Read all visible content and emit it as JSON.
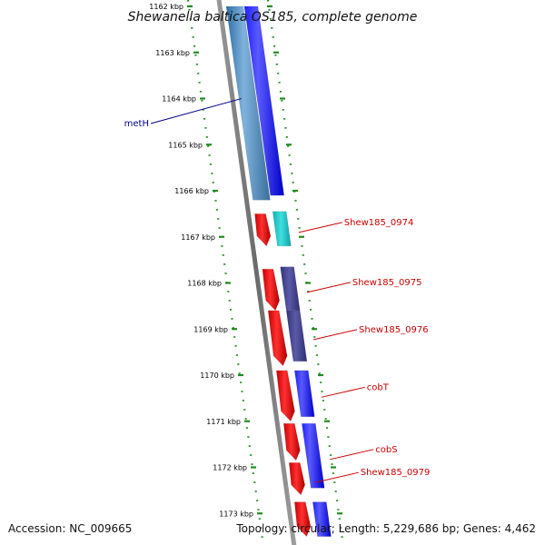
{
  "title": "Shewanella baltica OS185, complete genome",
  "accession": "Accession: NC_009665",
  "topology": "Topology: circular; Length: 5,229,686 bp; Genes: 4,462",
  "colors": {
    "forward_gene": "#0000ee",
    "reverse_gene": "#ee0000",
    "metH": "#4682b4",
    "cyan_gene": "#18c8c8",
    "purple_gene": "#44448c",
    "backbone": "#888888",
    "tick": "#228b22",
    "label_blue": "#00008b",
    "label_red": "#cc0000"
  },
  "ruler": {
    "unit": "kbp",
    "ticks": [
      {
        "kbp": 1162,
        "label": "1162 kbp"
      },
      {
        "kbp": 1163,
        "label": "1163 kbp"
      },
      {
        "kbp": 1164,
        "label": "1164 kbp"
      },
      {
        "kbp": 1165,
        "label": "1165 kbp"
      },
      {
        "kbp": 1166,
        "label": "1166 kbp"
      },
      {
        "kbp": 1167,
        "label": "1167 kbp"
      },
      {
        "kbp": 1168,
        "label": "1168 kbp"
      },
      {
        "kbp": 1169,
        "label": "1169 kbp"
      },
      {
        "kbp": 1170,
        "label": "1170 kbp"
      },
      {
        "kbp": 1171,
        "label": "1171 kbp"
      },
      {
        "kbp": 1172,
        "label": "1172 kbp"
      },
      {
        "kbp": 1173,
        "label": "1173 kbp"
      }
    ]
  },
  "genes": [
    {
      "name": "metH",
      "strand": "forward",
      "color": "metH",
      "start": 1162.0,
      "end": 1166.2
    },
    {
      "name": "",
      "strand": "forward",
      "color": "forward_gene",
      "start": 1162.0,
      "end": 1166.1
    },
    {
      "name": "",
      "strand": "reverse",
      "color": "reverse_gene",
      "start": 1166.5,
      "end": 1167.2
    },
    {
      "name": "Shew185_0974",
      "strand": "forward",
      "color": "cyan_gene",
      "start": 1166.45,
      "end": 1167.2
    },
    {
      "name": "",
      "strand": "reverse",
      "color": "reverse_gene",
      "start": 1167.7,
      "end": 1168.6
    },
    {
      "name": "Shew185_0975",
      "strand": "forward",
      "color": "purple_gene",
      "start": 1167.65,
      "end": 1168.6
    },
    {
      "name": "",
      "strand": "reverse",
      "color": "reverse_gene",
      "start": 1168.6,
      "end": 1169.8
    },
    {
      "name": "Shew185_0976",
      "strand": "forward",
      "color": "purple_gene",
      "start": 1168.6,
      "end": 1169.7
    },
    {
      "name": "",
      "strand": "reverse",
      "color": "reverse_gene",
      "start": 1169.9,
      "end": 1171.0
    },
    {
      "name": "cobT",
      "strand": "forward",
      "color": "forward_gene",
      "start": 1169.9,
      "end": 1170.9
    },
    {
      "name": "",
      "strand": "reverse",
      "color": "reverse_gene",
      "start": 1171.05,
      "end": 1171.85
    },
    {
      "name": "cobS",
      "strand": "forward",
      "color": "forward_gene",
      "start": 1171.05,
      "end": 1172.45
    },
    {
      "name": "Shew185_0979",
      "strand": "reverse",
      "color": "reverse_gene",
      "start": 1171.9,
      "end": 1172.6
    },
    {
      "name": "",
      "strand": "reverse",
      "color": "reverse_gene",
      "start": 1172.75,
      "end": 1173.5
    },
    {
      "name": "",
      "strand": "forward",
      "color": "forward_gene",
      "start": 1172.75,
      "end": 1173.5
    }
  ]
}
